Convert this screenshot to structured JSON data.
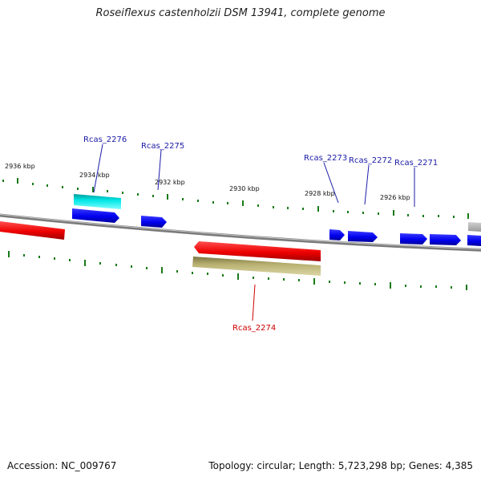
{
  "title": "Roseiflexus castenholzii DSM 13941, complete genome",
  "footer": {
    "accession": "Accession: NC_009767",
    "stats": "Topology: circular; Length: 5,723,298 bp; Genes: 4,385"
  },
  "colors": {
    "backbone": "#808080",
    "tick": "#1a7a1a",
    "forward_gene": "#0000ee",
    "reverse_gene": "#ee0000",
    "highlight": "#00e0e0",
    "rna_band": "#b8b070",
    "label_forward": "#1a1aa6",
    "label_reverse": "#cc0000"
  },
  "ticks": [
    "2936 kbp",
    "2934 kbp",
    "2932 kbp",
    "2930 kbp",
    "2928 kbp",
    "2926 kbp"
  ],
  "gene_labels": [
    {
      "name": "Rcas_2276",
      "strand": "forward"
    },
    {
      "name": "Rcas_2275",
      "strand": "forward"
    },
    {
      "name": "Rcas_2273",
      "strand": "forward"
    },
    {
      "name": "Rcas_2272",
      "strand": "forward"
    },
    {
      "name": "Rcas_2271",
      "strand": "forward"
    },
    {
      "name": "Rcas_2274",
      "strand": "reverse"
    }
  ]
}
